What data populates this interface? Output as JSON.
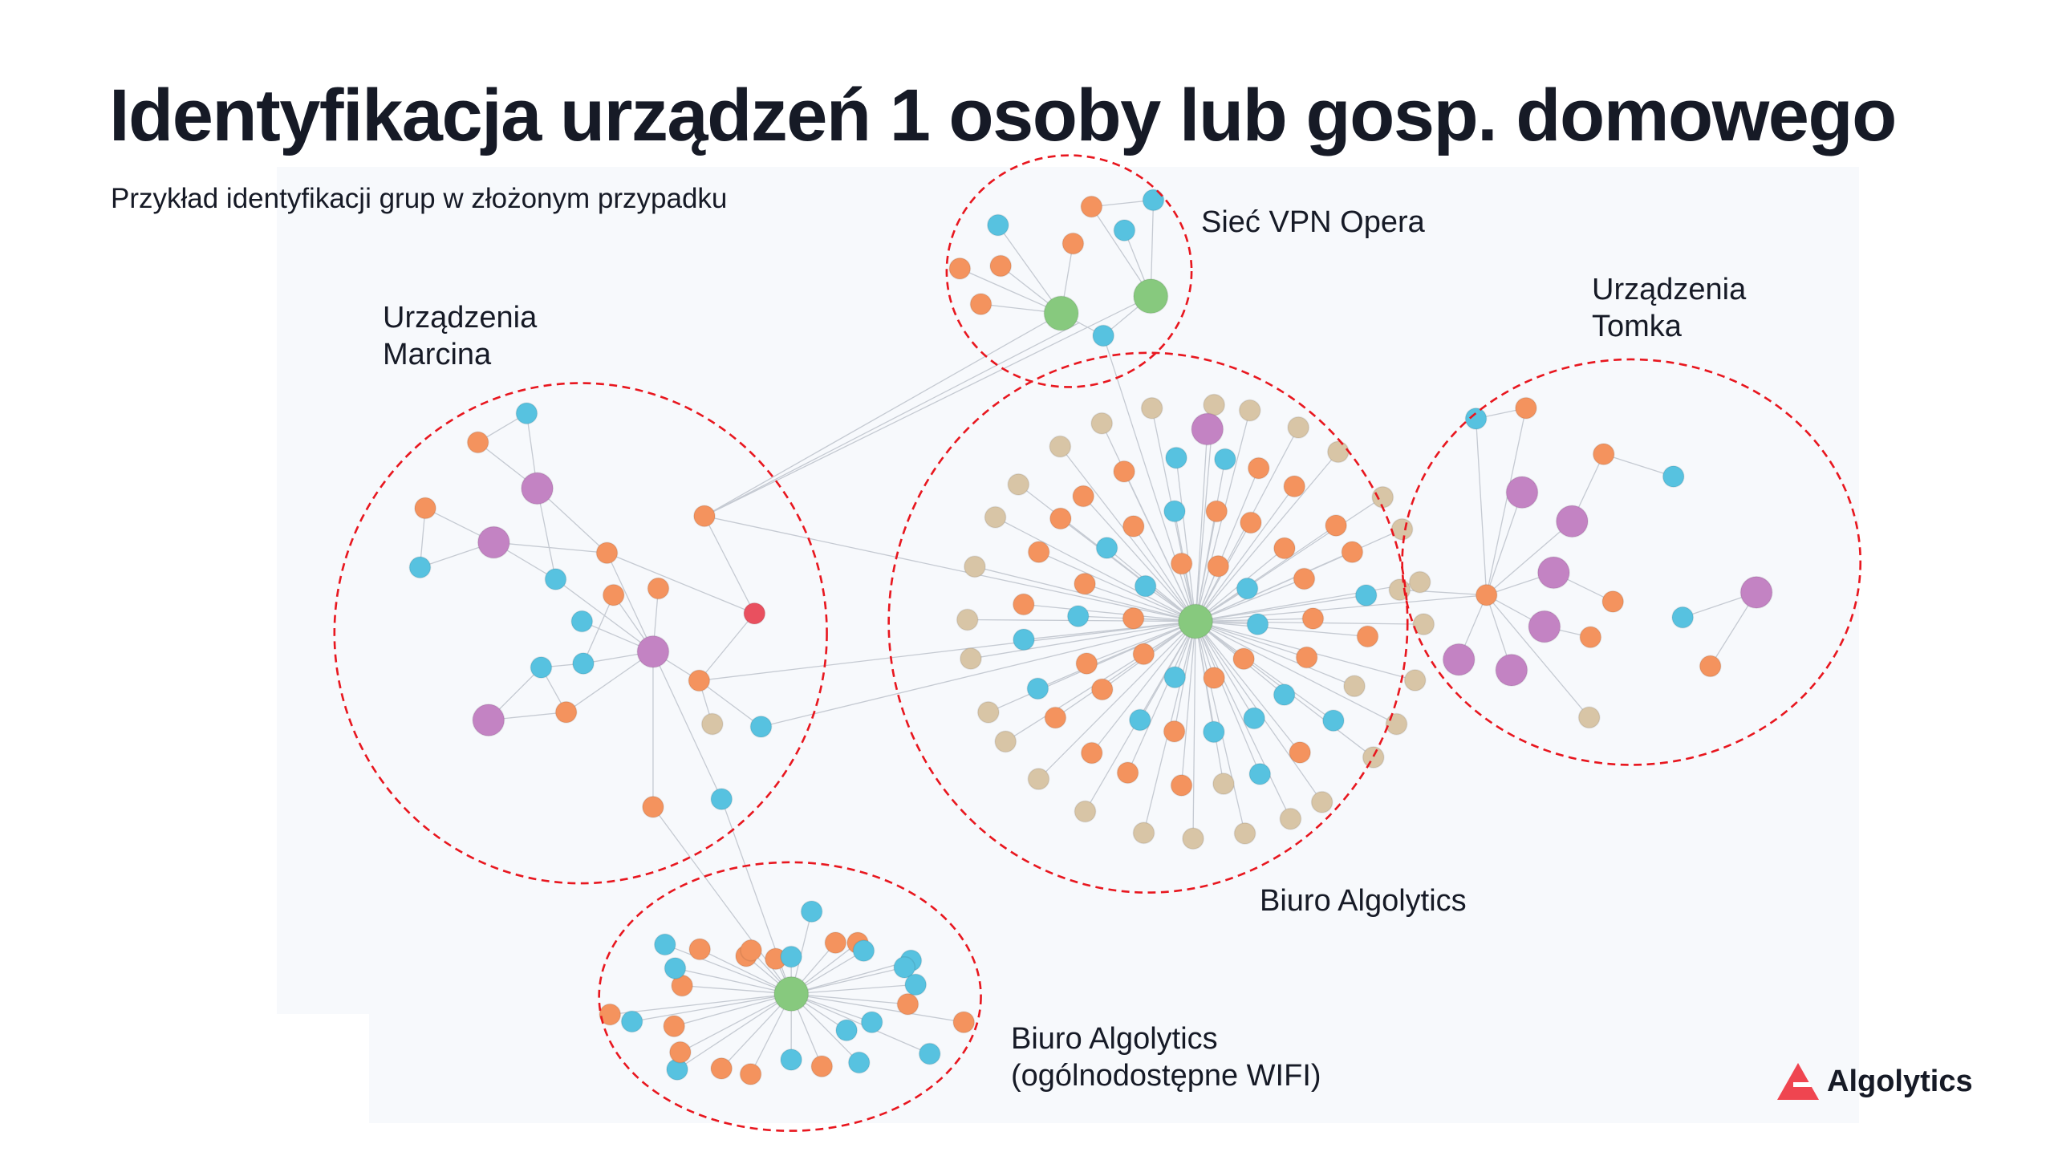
{
  "title": "Identyfikacja urządzeń 1 osoby lub gosp. domowego",
  "subtitle": "Przykład identyfikacji grup w złożonym przypadku",
  "groups": {
    "vpn": "Sieć VPN Opera",
    "marcin_1": "Urządzenia",
    "marcin_2": "Marcina",
    "tomek_1": "Urządzenia",
    "tomek_2": "Tomka",
    "office": "Biuro Algolytics",
    "wifi_1": "Biuro Algolytics",
    "wifi_2": "(ogólnodostępne WIFI)"
  },
  "logo": "Algolytics",
  "colors": {
    "orange": "#f4935e",
    "blue": "#57c2e0",
    "green": "#87c97e",
    "purple": "#c383c3",
    "tan": "#d8c5a6",
    "red": "#e9505f",
    "edge": "#c5cad2",
    "group_outline": "#e8171f",
    "brand": "#ef4550"
  }
}
